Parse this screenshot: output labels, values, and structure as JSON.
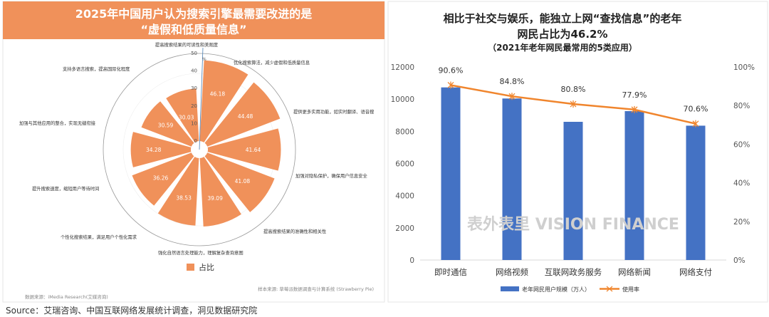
{
  "left_panel": {
    "title_line1": "2025年中国用户认为搜索引擎最需要改进的是",
    "title_line2": "“虚假和低质量信息”",
    "legend_label": "占比",
    "data_source": "数据来源：iMedia Research(艾媒咨询)",
    "sample_source": "样本来源: 草莓派数据调查与计算系统 (Strawberry Pie)",
    "colors": {
      "header": "#f0915a",
      "slice": "#f0915a"
    }
  },
  "right_panel": {
    "title_line1": "相比于社交与娱乐，能独立上网“查找信息”的老年",
    "title_line2": "网民占比为46.2%",
    "subtitle": "（2021年老年网民最常用的5类应用）",
    "watermark": "表外表里 VISION FINANCE",
    "colors": {
      "bar": "#4472c4",
      "line": "#f0852d"
    }
  },
  "footer_source": "Source：艾瑞咨询、中国互联网络发展统计调查，洞见数据研究院",
  "chart_data": [
    {
      "type": "polar-bar",
      "series": [
        {
          "name": "占比",
          "values": [
            46.18,
            44.48,
            41.64,
            41.08,
            39.09,
            38.53,
            36.26,
            34.28,
            30.59,
            30.03
          ]
        }
      ],
      "categories": [
        "优化搜索算法，减少虚假和低质量信息",
        "提供更多实用功能，如实时翻译、语音搜",
        "加强对隐私保护，确保用户信息安全",
        "提高搜索结果的准确性和相关性",
        "强化自然语言处理能力，理解复杂查询意图",
        "个性化搜索结果，满足用户个性化需求",
        "提升搜索速度，缩短用户等待时间",
        "加强与其他应用的整合，实现无缝衔接",
        "支持多语言搜索，提高国际化程度",
        "提高搜索结果的可读性和美观度"
      ],
      "radial_ticks": [
        "0",
        "10",
        "20",
        "30",
        "40",
        "50"
      ],
      "radial_unit": "%",
      "rlim": [
        0,
        50
      ],
      "legend": "bottom"
    },
    {
      "type": "bar+line",
      "categories": [
        "即时通信",
        "网络视频",
        "互联网政务服务",
        "网络新闻",
        "网络支付"
      ],
      "series": [
        {
          "name": "老年网民用户规模（万人）",
          "type": "bar",
          "axis": "left",
          "values": [
            10730,
            10040,
            8590,
            9255,
            8350
          ]
        },
        {
          "name": "使用率",
          "type": "line",
          "axis": "right",
          "values": [
            90.6,
            84.8,
            80.8,
            77.9,
            70.6
          ],
          "labels": [
            "90.6%",
            "84.8%",
            "80.8%",
            "77.9%",
            "70.6%"
          ]
        }
      ],
      "ylim_left": [
        0,
        12000
      ],
      "yticks_left": [
        "0",
        "2000",
        "4000",
        "6000",
        "8000",
        "10000",
        "12000"
      ],
      "ylim_right": [
        0,
        100
      ],
      "yticks_right": [
        "0%",
        "20%",
        "40%",
        "60%",
        "80%",
        "100%"
      ],
      "legend": "bottom",
      "grid": false
    }
  ]
}
